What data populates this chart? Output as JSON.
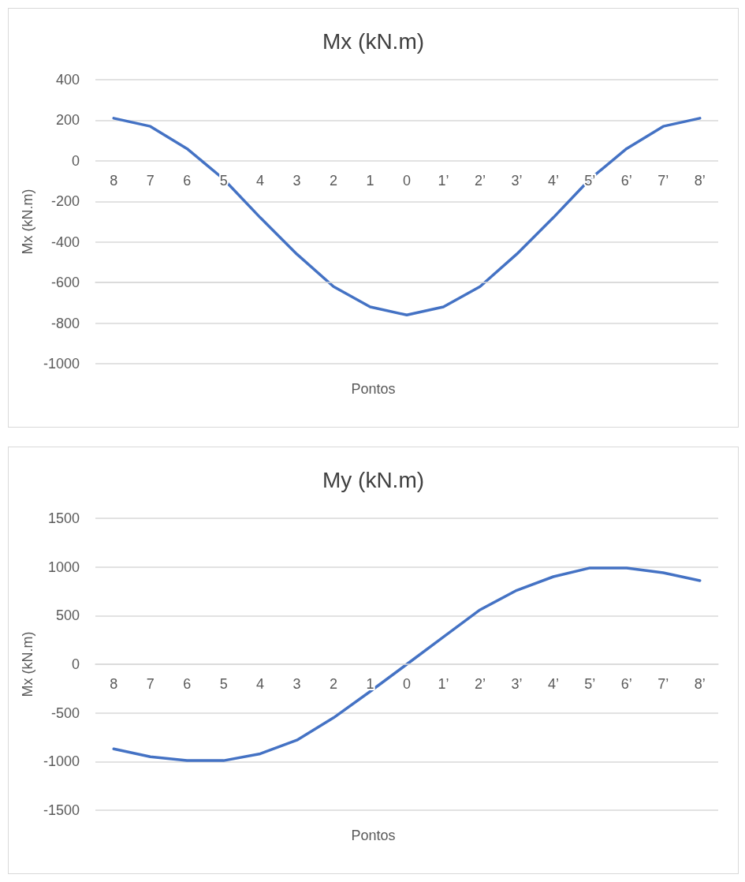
{
  "chart_data": [
    {
      "type": "line",
      "title": "Mx (kN.m)",
      "xlabel": "Pontos",
      "ylabel": "Mx (kN.m)",
      "categories": [
        "8",
        "7",
        "6",
        "5",
        "4",
        "3",
        "2",
        "1",
        "0",
        "1’",
        "2’",
        "3’",
        "4’",
        "5’",
        "6’",
        "7’",
        "8’"
      ],
      "series": [
        {
          "color": "#4472c4",
          "values": [
            210,
            170,
            60,
            -90,
            -280,
            -460,
            -620,
            -720,
            -760,
            -720,
            -620,
            -460,
            -280,
            -90,
            60,
            170,
            210
          ]
        }
      ],
      "ylim": [
        -1000,
        400
      ],
      "yticks": [
        -1000,
        -800,
        -600,
        -400,
        -200,
        0,
        200,
        400
      ],
      "grid": "y",
      "marker": "none",
      "line_style": "solid"
    },
    {
      "type": "line",
      "title": "My (kN.m)",
      "xlabel": "Pontos",
      "ylabel": "Mx (kN.m)",
      "categories": [
        "8",
        "7",
        "6",
        "5",
        "4",
        "3",
        "2",
        "1",
        "0",
        "1’",
        "2’",
        "3’",
        "4’",
        "5’",
        "6’",
        "7’",
        "8’"
      ],
      "series": [
        {
          "color": "#4472c4",
          "values": [
            -870,
            -950,
            -990,
            -990,
            -920,
            -780,
            -550,
            -280,
            0,
            280,
            560,
            760,
            900,
            990,
            990,
            940,
            860
          ]
        }
      ],
      "ylim": [
        -1500,
        1500
      ],
      "yticks": [
        -1500,
        -1000,
        -500,
        0,
        500,
        1000,
        1500
      ],
      "grid": "y",
      "marker": "none",
      "line_style": "solid"
    }
  ]
}
